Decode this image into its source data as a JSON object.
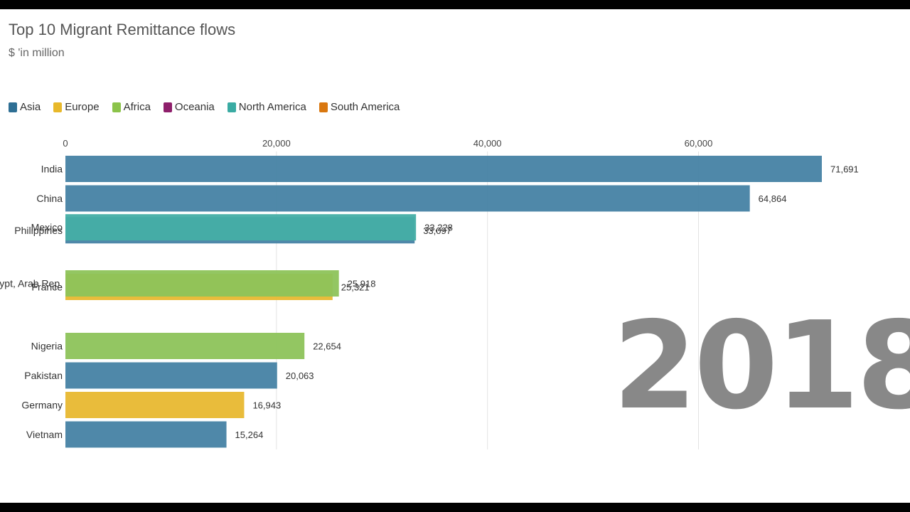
{
  "title": "Top 10 Migrant Remittance flows",
  "subtitle": "$ 'in million",
  "year": "2018",
  "legend": [
    {
      "label": "Asia",
      "color": "#3d7a9c"
    },
    {
      "label": "Europe",
      "color": "#e8b82a"
    },
    {
      "label": "Africa",
      "color": "#8bc34a"
    },
    {
      "label": "Oceania",
      "color": "#8e1f6b"
    },
    {
      "label": "North America",
      "color": "#3aaba3"
    },
    {
      "label": "South America",
      "color": "#d9770f"
    }
  ],
  "chart_data": {
    "type": "bar",
    "orientation": "horizontal",
    "xlim": [
      0,
      71691
    ],
    "ticks": [
      {
        "value": 0,
        "label": "0"
      },
      {
        "value": 20000,
        "label": "20,000"
      },
      {
        "value": 40000,
        "label": "40,000"
      },
      {
        "value": 60000,
        "label": "60,000"
      }
    ],
    "rows": [
      {
        "category": "India",
        "value": 71691,
        "label": "71,691",
        "region": "Asia",
        "color": "#4682a4",
        "rank": 0
      },
      {
        "category": "China",
        "value": 64864,
        "label": "64,864",
        "region": "Asia",
        "color": "#4682a4",
        "rank": 1
      },
      {
        "category": "Philippines",
        "value": 33097,
        "label": "33,097",
        "region": "Asia",
        "color": "#4682a4",
        "rank": 2.08
      },
      {
        "category": "Mexico",
        "value": 33228,
        "label": "33,228",
        "region": "North America",
        "color": "#45aea5",
        "rank": 1.98
      },
      {
        "category": "France",
        "value": 25321,
        "label": "25,321",
        "region": "Europe",
        "color": "#e8b830",
        "rank": 4.0
      },
      {
        "category": "Egypt, Arab Rep.",
        "value": 25918,
        "label": "25,918",
        "region": "Africa",
        "color": "#8dc35a",
        "rank": 3.88
      },
      {
        "category": "Nigeria",
        "value": 22654,
        "label": "22,654",
        "region": "Africa",
        "color": "#8dc35a",
        "rank": 6
      },
      {
        "category": "Pakistan",
        "value": 20063,
        "label": "20,063",
        "region": "Asia",
        "color": "#4682a4",
        "rank": 7
      },
      {
        "category": "Germany",
        "value": 16943,
        "label": "16,943",
        "region": "Europe",
        "color": "#e8b830",
        "rank": 8
      },
      {
        "category": "Vietnam",
        "value": 15264,
        "label": "15,264",
        "region": "Asia",
        "color": "#4682a4",
        "rank": 9
      }
    ]
  }
}
